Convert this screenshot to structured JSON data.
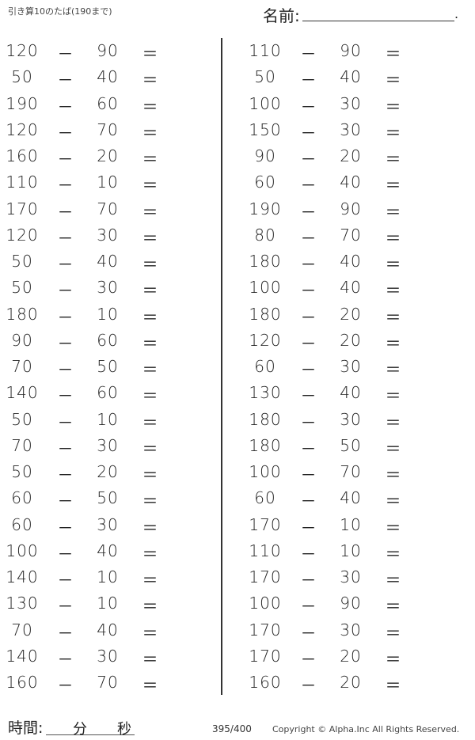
{
  "header": {
    "title": "引き算10のたば(190まで)",
    "name_label": "名前:",
    "name_end": "."
  },
  "operator": "－",
  "equals": "＝",
  "left": [
    [
      "120",
      "90"
    ],
    [
      "50",
      "40"
    ],
    [
      "190",
      "60"
    ],
    [
      "120",
      "70"
    ],
    [
      "160",
      "20"
    ],
    [
      "110",
      "10"
    ],
    [
      "170",
      "70"
    ],
    [
      "120",
      "30"
    ],
    [
      "50",
      "40"
    ],
    [
      "50",
      "30"
    ],
    [
      "180",
      "10"
    ],
    [
      "90",
      "60"
    ],
    [
      "70",
      "50"
    ],
    [
      "140",
      "60"
    ],
    [
      "50",
      "10"
    ],
    [
      "70",
      "30"
    ],
    [
      "50",
      "20"
    ],
    [
      "60",
      "50"
    ],
    [
      "60",
      "30"
    ],
    [
      "100",
      "40"
    ],
    [
      "140",
      "10"
    ],
    [
      "130",
      "10"
    ],
    [
      "70",
      "40"
    ],
    [
      "140",
      "30"
    ],
    [
      "160",
      "70"
    ]
  ],
  "right": [
    [
      "110",
      "90"
    ],
    [
      "50",
      "40"
    ],
    [
      "100",
      "30"
    ],
    [
      "150",
      "30"
    ],
    [
      "90",
      "20"
    ],
    [
      "60",
      "40"
    ],
    [
      "190",
      "90"
    ],
    [
      "80",
      "70"
    ],
    [
      "180",
      "40"
    ],
    [
      "100",
      "40"
    ],
    [
      "180",
      "20"
    ],
    [
      "120",
      "20"
    ],
    [
      "60",
      "30"
    ],
    [
      "130",
      "40"
    ],
    [
      "180",
      "30"
    ],
    [
      "180",
      "50"
    ],
    [
      "100",
      "70"
    ],
    [
      "60",
      "40"
    ],
    [
      "170",
      "10"
    ],
    [
      "110",
      "10"
    ],
    [
      "170",
      "30"
    ],
    [
      "100",
      "90"
    ],
    [
      "170",
      "30"
    ],
    [
      "170",
      "20"
    ],
    [
      "160",
      "20"
    ]
  ],
  "footer": {
    "time_label": "時間:",
    "minutes": "分",
    "seconds": "秒",
    "page": "395/400",
    "copyright": "Copyright ©  Alpha.Inc All Rights Reserved."
  }
}
